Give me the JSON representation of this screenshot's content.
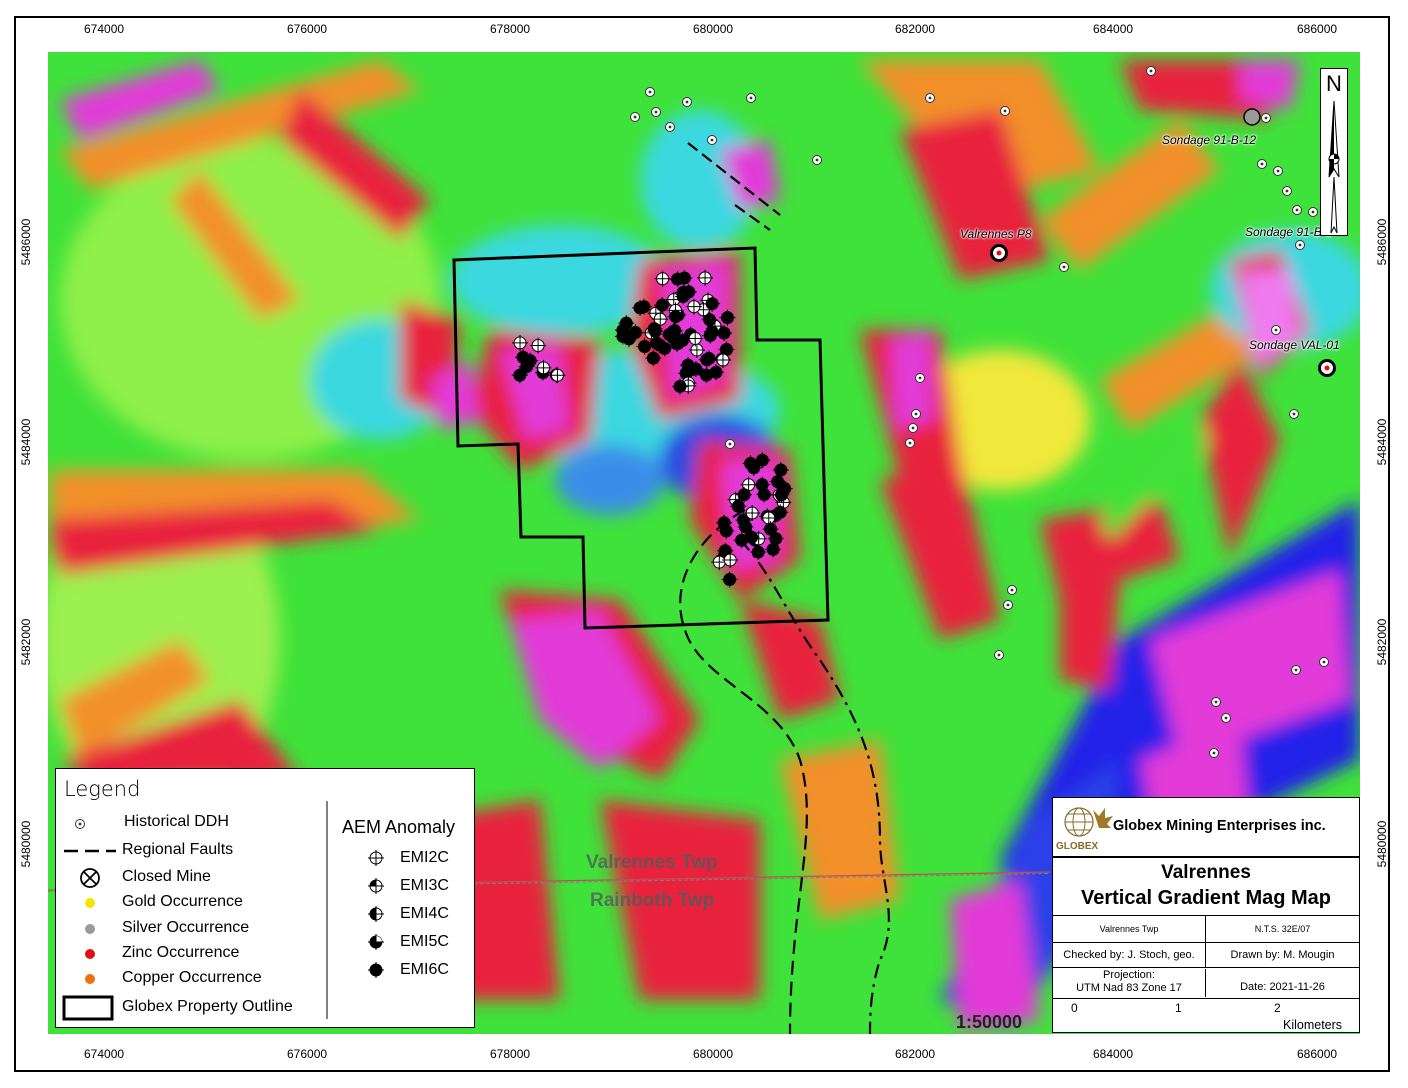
{
  "map": {
    "x_ticks": [
      "674000",
      "676000",
      "678000",
      "680000",
      "682000",
      "684000",
      "686000"
    ],
    "y_ticks": [
      "5486000",
      "5484000",
      "5482000",
      "5480000"
    ],
    "labels": {
      "valrennes_p8": "Valrennes P8",
      "sondage_91b12": "Sondage 91-B-12",
      "sondage_91b5": "Sondage 91-B-5",
      "sondage_val01": "Sondage VAL-01"
    },
    "township_north": "Valrennes Twp",
    "township_south": "Rainboth Twp",
    "scale": "1:50000",
    "north_letter": "N"
  },
  "legend": {
    "title": "Legend",
    "items": [
      {
        "label": "Historical DDH",
        "icon": "ddh-dot-icon"
      },
      {
        "label": "Regional Faults",
        "icon": "dashed-line-icon"
      },
      {
        "label": "Closed Mine",
        "icon": "closed-mine-icon"
      },
      {
        "label": "Gold Occurrence",
        "icon": "yellow-dot-icon",
        "color": "#f2e600"
      },
      {
        "label": "Silver Occurrence",
        "icon": "grey-dot-icon",
        "color": "#9a9a9a"
      },
      {
        "label": "Zinc Occurrence",
        "icon": "red-dot-icon",
        "color": "#e01010"
      },
      {
        "label": "Copper Occurrence",
        "icon": "orange-dot-icon",
        "color": "#f07010"
      },
      {
        "label": "Globex Property Outline",
        "icon": "outline-box-icon"
      }
    ],
    "aem_title": "AEM Anomaly",
    "aem_items": [
      "EMI2C",
      "EMI3C",
      "EMI4C",
      "EMI5C",
      "EMI6C"
    ]
  },
  "titleblock": {
    "company": "Globex Mining Enterprises inc.",
    "logo_text": "GLOBEX",
    "title_line1": "Valrennes",
    "title_line2": "Vertical Gradient Mag Map",
    "township": "Valrennes Twp",
    "nts": "N.T.S. 32E/07",
    "checked": "Checked by: J. Stoch, geo.",
    "drawn": "Drawn by: M. Mougin",
    "projection_label": "Projection:",
    "projection": "UTM Nad 83 Zone 17",
    "date": "Date: 2021-11-26",
    "scalebar_ticks": [
      "0",
      "1",
      "2"
    ],
    "scalebar_unit": "Kilometers"
  },
  "colors": {
    "green": "#3fe23a",
    "lightgreen": "#9cf050",
    "yellow": "#f0e83a",
    "orange": "#f2902a",
    "red": "#e8203c",
    "magenta": "#e23ad8",
    "pink": "#f07af0",
    "cyan": "#3ad8e0",
    "blue": "#2020e8"
  }
}
